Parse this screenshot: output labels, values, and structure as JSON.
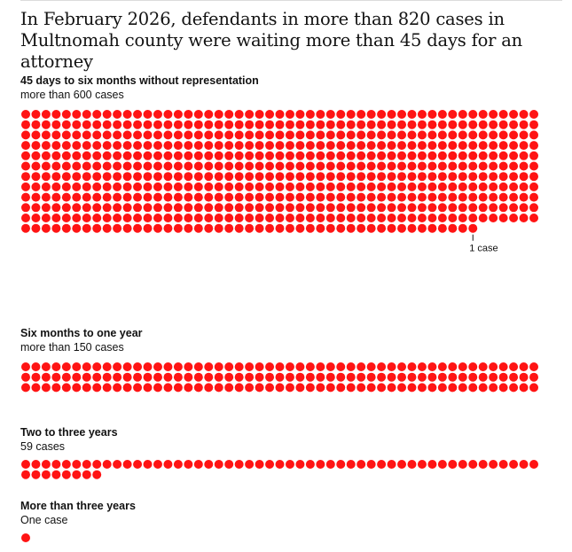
{
  "title": "In February 2026, defendants in more than 820 cases in Multnomah county were waiting more than 45 days for an attorney",
  "colors": {
    "dot": "#ff1414",
    "text": "#121212"
  },
  "chart_data": {
    "type": "unit-dot",
    "unit": "1 case per dot",
    "annotation": "1 case",
    "groups": [
      {
        "heading": "45 days to six months without representation",
        "subheading": "more than 600 cases",
        "count": 606
      },
      {
        "heading": "Six months to one year",
        "subheading": "more than 150 cases",
        "count": 153
      },
      {
        "heading": "Two to three years",
        "subheading": "59 cases",
        "count": 59
      },
      {
        "heading": "More than three years",
        "subheading": "One case",
        "count": 1
      }
    ]
  }
}
